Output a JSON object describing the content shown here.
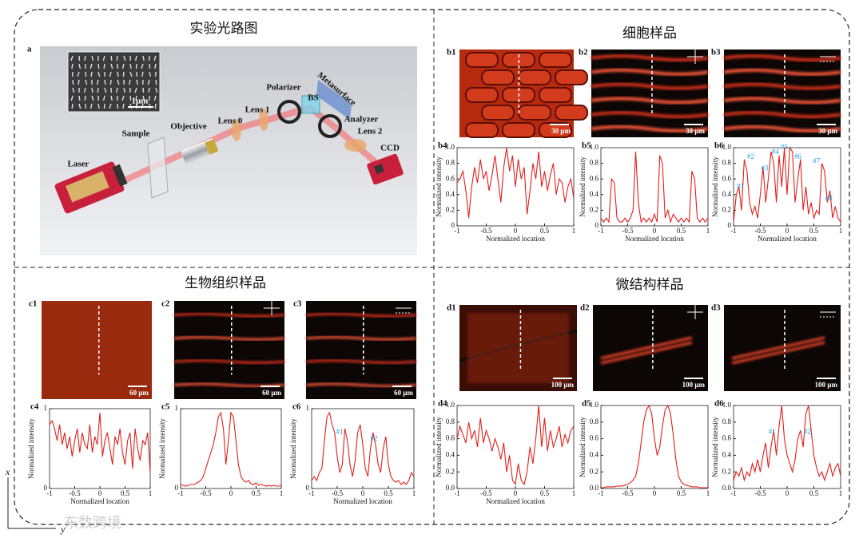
{
  "sections": [
    "实验光路图",
    "细胞样品",
    "生物组织样品",
    "微结构样品"
  ],
  "setup": {
    "panel": "a",
    "labels": [
      "Laser",
      "Sample",
      "Objective",
      "Lens 0",
      "Lens 1",
      "Polarizer",
      "BS",
      "Metasurface",
      "Analyzer",
      "Lens 2",
      "CCD"
    ],
    "inset_scale": "1μm"
  },
  "images": [
    {
      "panel": "b1",
      "scale": "30 μm"
    },
    {
      "panel": "b2",
      "scale": "30 μm"
    },
    {
      "panel": "b3",
      "scale": "30 μm"
    },
    {
      "panel": "c1",
      "scale": "60 μm"
    },
    {
      "panel": "c2",
      "scale": "60 μm"
    },
    {
      "panel": "c3",
      "scale": "60 μm"
    },
    {
      "panel": "d1",
      "scale": "100 μm"
    },
    {
      "panel": "d2",
      "scale": "100 μm"
    },
    {
      "panel": "d3",
      "scale": "100 μm"
    }
  ],
  "corner": {
    "x": "x",
    "y": "y",
    "watermark": "东数跨境"
  },
  "chart_data": [
    {
      "type": "line",
      "panel": "b4",
      "ylabel": "Normalized intensity",
      "xlabel": "Normalized location",
      "x": [
        -1,
        -0.95,
        -0.9,
        -0.85,
        -0.8,
        -0.75,
        -0.7,
        -0.65,
        -0.6,
        -0.55,
        -0.5,
        -0.45,
        -0.4,
        -0.35,
        -0.3,
        -0.25,
        -0.2,
        -0.15,
        -0.1,
        -0.05,
        0,
        0.05,
        0.1,
        0.15,
        0.2,
        0.25,
        0.3,
        0.35,
        0.4,
        0.45,
        0.5,
        0.55,
        0.6,
        0.65,
        0.7,
        0.75,
        0.8,
        0.85,
        0.9,
        0.95,
        1
      ],
      "series": [
        {
          "color": "#e0201c",
          "values": [
            0.55,
            0.6,
            0.7,
            0.45,
            0.1,
            0.5,
            0.75,
            0.55,
            0.85,
            0.6,
            0.7,
            0.45,
            0.65,
            0.9,
            0.6,
            0.3,
            0.75,
            1.0,
            0.7,
            0.9,
            0.5,
            0.85,
            0.6,
            0.75,
            0.15,
            0.45,
            0.8,
            0.6,
            0.95,
            0.5,
            0.7,
            0.45,
            0.65,
            0.8,
            0.4,
            0.6,
            0.55,
            0.3,
            0.5,
            0.6,
            0.35
          ]
        }
      ],
      "xlim": [
        -1,
        1
      ],
      "ylim": [
        0,
        1
      ],
      "xticks": [
        -1,
        -0.5,
        0,
        0.5,
        1
      ],
      "yticks": [
        0,
        0.2,
        0.4,
        0.6,
        0.8,
        {
          "value": 1,
          "label": "1.0"
        }
      ],
      "annotations": []
    },
    {
      "type": "line",
      "panel": "b5",
      "ylabel": "Normalized intensity",
      "xlabel": "Normalized location",
      "x": [
        -1,
        -0.95,
        -0.9,
        -0.85,
        -0.8,
        -0.75,
        -0.7,
        -0.65,
        -0.6,
        -0.55,
        -0.5,
        -0.45,
        -0.4,
        -0.35,
        -0.3,
        -0.25,
        -0.2,
        -0.15,
        -0.1,
        -0.05,
        0,
        0.05,
        0.1,
        0.15,
        0.2,
        0.25,
        0.3,
        0.35,
        0.4,
        0.45,
        0.5,
        0.55,
        0.6,
        0.65,
        0.7,
        0.75,
        0.8,
        0.85,
        0.9,
        0.95,
        1
      ],
      "series": [
        {
          "color": "#e0201c",
          "values": [
            0.1,
            0.05,
            0.1,
            0.05,
            0.6,
            0.55,
            0.1,
            0.05,
            0.05,
            0.1,
            0.05,
            0.1,
            0.2,
            0.95,
            0.3,
            0.05,
            0.1,
            0.05,
            0.1,
            0.05,
            0.15,
            0.05,
            0.9,
            0.8,
            0.1,
            0.2,
            0.05,
            0.15,
            0.1,
            0.05,
            0.1,
            0.05,
            0.1,
            0.05,
            0.7,
            0.6,
            0.1,
            0.05,
            0.1,
            0.05,
            0.1
          ]
        }
      ],
      "xlim": [
        -1,
        1
      ],
      "ylim": [
        0,
        1
      ],
      "xticks": [
        -1,
        -0.5,
        0,
        0.5,
        1
      ],
      "yticks": [
        0,
        0.2,
        0.4,
        0.6,
        0.8,
        {
          "value": 1,
          "label": "1.0"
        }
      ],
      "annotations": []
    },
    {
      "type": "line",
      "panel": "b6",
      "ylabel": "Normalized intensity",
      "xlabel": "Normalized location",
      "x": [
        -1,
        -0.95,
        -0.9,
        -0.85,
        -0.8,
        -0.75,
        -0.7,
        -0.65,
        -0.6,
        -0.55,
        -0.5,
        -0.45,
        -0.4,
        -0.35,
        -0.3,
        -0.25,
        -0.2,
        -0.15,
        -0.1,
        -0.05,
        0,
        0.05,
        0.1,
        0.15,
        0.2,
        0.25,
        0.3,
        0.35,
        0.4,
        0.45,
        0.5,
        0.55,
        0.6,
        0.65,
        0.7,
        0.75,
        0.8,
        0.85,
        0.9,
        0.95,
        1
      ],
      "series": [
        {
          "color": "#e0201c",
          "values": [
            0.05,
            0.4,
            0.5,
            0.2,
            0.85,
            0.7,
            0.3,
            0.15,
            0.25,
            0.1,
            0.4,
            0.75,
            0.3,
            0.6,
            0.95,
            0.8,
            0.3,
            0.9,
            0.5,
            1.0,
            0.4,
            1.0,
            0.95,
            0.3,
            0.6,
            0.85,
            0.2,
            0.5,
            0.15,
            0.3,
            0.1,
            0.2,
            0.15,
            0.8,
            0.7,
            0.3,
            0.45,
            0.1,
            0.25,
            0.1,
            0.05
          ]
        }
      ],
      "xlim": [
        -1,
        1
      ],
      "ylim": [
        0,
        1
      ],
      "xticks": [
        -1,
        -0.5,
        0,
        0.5,
        1
      ],
      "yticks": [
        0,
        0.2,
        0.4,
        0.6,
        0.8,
        {
          "value": 1,
          "label": "1.0"
        }
      ],
      "annotation_color": "#2aa0dc",
      "annotations": [
        {
          "text": "#1",
          "x": -0.87,
          "y": 0.5
        },
        {
          "text": "#2",
          "x": -0.68,
          "y": 0.88
        },
        {
          "text": "#3",
          "x": -0.42,
          "y": 0.73
        },
        {
          "text": "#4",
          "x": -0.22,
          "y": 0.94
        },
        {
          "text": "#5",
          "x": -0.05,
          "y": 1.0
        },
        {
          "text": "#6",
          "x": 0.2,
          "y": 0.88
        },
        {
          "text": "#7",
          "x": 0.55,
          "y": 0.82
        },
        {
          "text": "#8",
          "x": 0.78,
          "y": 0.35
        }
      ]
    },
    {
      "type": "line",
      "panel": "c4",
      "ylabel": "Normalized intensity",
      "xlabel": "Normalized location",
      "x": [
        -1,
        -0.95,
        -0.9,
        -0.85,
        -0.8,
        -0.75,
        -0.7,
        -0.65,
        -0.6,
        -0.55,
        -0.5,
        -0.45,
        -0.4,
        -0.35,
        -0.3,
        -0.25,
        -0.2,
        -0.15,
        -0.1,
        -0.05,
        0,
        0.05,
        0.1,
        0.15,
        0.2,
        0.25,
        0.3,
        0.35,
        0.4,
        0.45,
        0.5,
        0.55,
        0.6,
        0.65,
        0.7,
        0.75,
        0.8,
        0.85,
        0.9,
        0.95,
        1
      ],
      "series": [
        {
          "color": "#e0201c",
          "values": [
            0.8,
            0.85,
            0.75,
            0.6,
            0.8,
            0.55,
            0.7,
            0.5,
            0.65,
            0.4,
            0.6,
            0.75,
            0.45,
            0.7,
            0.55,
            0.5,
            0.8,
            0.45,
            0.65,
            0.55,
            0.95,
            0.4,
            0.6,
            0.7,
            0.5,
            0.3,
            0.65,
            0.55,
            0.75,
            0.45,
            0.3,
            0.6,
            0.7,
            0.25,
            0.75,
            0.5,
            0.35,
            0.6,
            0.55,
            0.7,
            0.2
          ]
        }
      ],
      "xlim": [
        -1,
        1
      ],
      "ylim": [
        0,
        1
      ],
      "xticks": [
        -1,
        -0.5,
        0,
        0.5,
        1
      ],
      "yticks": [
        0,
        1
      ],
      "annotations": []
    },
    {
      "type": "line",
      "panel": "c5",
      "ylabel": "Normalized intensity",
      "x": [
        -1,
        -0.95,
        -0.9,
        -0.85,
        -0.8,
        -0.75,
        -0.7,
        -0.65,
        -0.6,
        -0.55,
        -0.5,
        -0.45,
        -0.4,
        -0.35,
        -0.3,
        -0.25,
        -0.2,
        -0.15,
        -0.1,
        -0.05,
        0,
        0.05,
        0.1,
        0.15,
        0.2,
        0.25,
        0.3,
        0.35,
        0.4,
        0.45,
        0.5,
        0.55,
        0.6,
        0.65,
        0.7,
        0.75,
        0.8,
        0.85,
        0.9,
        0.95,
        1
      ],
      "series": [
        {
          "color": "#e0201c",
          "values": [
            0.05,
            0.04,
            0.03,
            0.04,
            0.05,
            0.05,
            0.06,
            0.08,
            0.1,
            0.15,
            0.25,
            0.35,
            0.45,
            0.55,
            0.7,
            0.9,
            0.95,
            0.75,
            0.3,
            0.6,
            0.95,
            0.9,
            0.6,
            0.3,
            0.15,
            0.1,
            0.08,
            0.1,
            0.06,
            0.05,
            0.07,
            0.04,
            0.05,
            0.04,
            0.03,
            0.04,
            0.03,
            0.04,
            0.03,
            0.03,
            0.04
          ]
        }
      ],
      "xlim": [
        -1,
        1
      ],
      "ylim": [
        0,
        1
      ],
      "xticks": [
        -1,
        -0.5,
        0,
        0.5,
        1
      ],
      "yticks": [
        0,
        1
      ],
      "annotations": []
    },
    {
      "type": "line",
      "panel": "c6",
      "ylabel": "Normalized intensity",
      "xlabel": "Normalized location",
      "x": [
        -1,
        -0.95,
        -0.9,
        -0.85,
        -0.8,
        -0.75,
        -0.7,
        -0.65,
        -0.6,
        -0.55,
        -0.5,
        -0.45,
        -0.4,
        -0.35,
        -0.3,
        -0.25,
        -0.2,
        -0.15,
        -0.1,
        -0.05,
        0,
        0.05,
        0.1,
        0.15,
        0.2,
        0.25,
        0.3,
        0.35,
        0.4,
        0.45,
        0.5,
        0.55,
        0.6,
        0.65,
        0.7,
        0.75,
        0.8,
        0.85,
        0.9,
        0.95,
        1
      ],
      "series": [
        {
          "color": "#e0201c",
          "values": [
            0.1,
            0.15,
            0.1,
            0.2,
            0.25,
            0.6,
            0.9,
            0.95,
            0.8,
            0.7,
            0.4,
            0.2,
            0.3,
            0.75,
            0.6,
            0.3,
            0.15,
            0.35,
            0.7,
            0.8,
            0.55,
            0.25,
            0.15,
            0.5,
            0.7,
            0.55,
            0.3,
            0.2,
            0.5,
            0.65,
            0.3,
            0.15,
            0.1,
            0.08,
            0.1,
            0.05,
            0.08,
            0.05,
            0.1,
            0.2,
            0.15
          ]
        }
      ],
      "xlim": [
        -1,
        1
      ],
      "ylim": [
        0,
        1
      ],
      "xticks": [
        -1,
        -0.5,
        0,
        0.5,
        1
      ],
      "yticks": [
        0,
        1
      ],
      "annotation_color": "#2aa0dc",
      "annotations": [
        {
          "text": "#1",
          "x": -0.45,
          "y": 0.7
        },
        {
          "text": "#2",
          "x": 0.22,
          "y": 0.62
        }
      ]
    },
    {
      "type": "line",
      "panel": "d4",
      "ylabel": "Normalized intensity",
      "xlabel": "Normalized location",
      "x": [
        -1,
        -0.95,
        -0.9,
        -0.85,
        -0.8,
        -0.75,
        -0.7,
        -0.65,
        -0.6,
        -0.55,
        -0.5,
        -0.45,
        -0.4,
        -0.35,
        -0.3,
        -0.25,
        -0.2,
        -0.15,
        -0.1,
        -0.05,
        0,
        0.05,
        0.1,
        0.15,
        0.2,
        0.25,
        0.3,
        0.35,
        0.4,
        0.45,
        0.5,
        0.55,
        0.6,
        0.65,
        0.7,
        0.75,
        0.8,
        0.85,
        0.9,
        0.95,
        1
      ],
      "series": [
        {
          "color": "#e0201c",
          "values": [
            0.6,
            0.75,
            0.65,
            0.55,
            0.8,
            0.6,
            0.7,
            0.5,
            0.85,
            0.55,
            0.7,
            0.6,
            0.45,
            0.6,
            0.5,
            0.35,
            0.55,
            0.2,
            0.4,
            0.1,
            0.05,
            0.3,
            0.1,
            0.05,
            0.2,
            0.5,
            0.3,
            0.6,
            1.0,
            0.5,
            0.85,
            0.45,
            0.7,
            0.5,
            0.6,
            0.75,
            0.5,
            0.65,
            0.55,
            0.7,
            0.75
          ]
        }
      ],
      "xlim": [
        -1,
        1
      ],
      "ylim": [
        0,
        1
      ],
      "xticks": [
        -1,
        -0.5,
        0,
        0.5,
        1
      ],
      "yticks": [
        {
          "value": 0,
          "label": "0.0"
        },
        0.2,
        0.4,
        0.6,
        0.8,
        {
          "value": 1,
          "label": "1.0"
        }
      ],
      "annotations": []
    },
    {
      "type": "line",
      "panel": "d5",
      "ylabel": "Normalized intensity",
      "x": [
        -1,
        -0.95,
        -0.9,
        -0.85,
        -0.8,
        -0.75,
        -0.7,
        -0.65,
        -0.6,
        -0.55,
        -0.5,
        -0.45,
        -0.4,
        -0.35,
        -0.3,
        -0.25,
        -0.2,
        -0.15,
        -0.1,
        -0.05,
        0,
        0.05,
        0.1,
        0.15,
        0.2,
        0.25,
        0.3,
        0.35,
        0.4,
        0.45,
        0.5,
        0.55,
        0.6,
        0.65,
        0.7,
        0.75,
        0.8,
        0.85,
        0.9,
        0.95,
        1
      ],
      "series": [
        {
          "color": "#e0201c",
          "values": [
            0.01,
            0.01,
            0.02,
            0.02,
            0.02,
            0.02,
            0.03,
            0.03,
            0.03,
            0.04,
            0.05,
            0.07,
            0.1,
            0.15,
            0.3,
            0.55,
            0.8,
            0.95,
            1.0,
            0.9,
            0.6,
            0.4,
            0.5,
            0.75,
            0.95,
            1.0,
            0.9,
            0.65,
            0.35,
            0.15,
            0.08,
            0.05,
            0.04,
            0.03,
            0.02,
            0.02,
            0.02,
            0.01,
            0.01,
            0.01,
            0.01
          ]
        }
      ],
      "xlim": [
        -1,
        1
      ],
      "ylim": [
        0,
        1
      ],
      "xticks": [
        -1,
        -0.5,
        0,
        0.5,
        1
      ],
      "yticks": [
        {
          "value": 0,
          "label": "0.0"
        },
        0.2,
        0.4,
        0.6,
        0.8,
        {
          "value": 1,
          "label": "1.0"
        }
      ],
      "annotations": []
    },
    {
      "type": "line",
      "panel": "d6",
      "ylabel": "Normalized intensity",
      "x": [
        -1,
        -0.95,
        -0.9,
        -0.85,
        -0.8,
        -0.75,
        -0.7,
        -0.65,
        -0.6,
        -0.55,
        -0.5,
        -0.45,
        -0.4,
        -0.35,
        -0.3,
        -0.25,
        -0.2,
        -0.15,
        -0.1,
        -0.05,
        0,
        0.05,
        0.1,
        0.15,
        0.2,
        0.25,
        0.3,
        0.35,
        0.4,
        0.45,
        0.5,
        0.55,
        0.6,
        0.65,
        0.7,
        0.75,
        0.8,
        0.85,
        0.9,
        0.95,
        1
      ],
      "series": [
        {
          "color": "#e0201c",
          "values": [
            0.1,
            0.2,
            0.15,
            0.25,
            0.1,
            0.2,
            0.15,
            0.3,
            0.2,
            0.35,
            0.2,
            0.4,
            0.55,
            0.25,
            0.5,
            0.7,
            0.4,
            0.75,
            1.0,
            0.6,
            0.4,
            0.3,
            0.2,
            0.35,
            0.6,
            0.7,
            0.5,
            0.9,
            1.0,
            0.7,
            0.4,
            0.25,
            0.15,
            0.2,
            0.1,
            0.2,
            0.3,
            0.15,
            0.25,
            0.3,
            0.15
          ]
        }
      ],
      "xlim": [
        -1,
        1
      ],
      "ylim": [
        0,
        1
      ],
      "xticks": [
        -1,
        -0.5,
        0,
        0.5,
        1
      ],
      "yticks": [
        {
          "value": 0,
          "label": "0.0"
        },
        0.2,
        0.4,
        0.6,
        0.8,
        {
          "value": 1,
          "label": "1.0"
        }
      ],
      "annotation_color": "#2aa0dc",
      "annotations": [
        {
          "text": "#1",
          "x": -0.28,
          "y": 0.68
        },
        {
          "text": "#2",
          "x": 0.38,
          "y": 0.68
        }
      ]
    }
  ]
}
